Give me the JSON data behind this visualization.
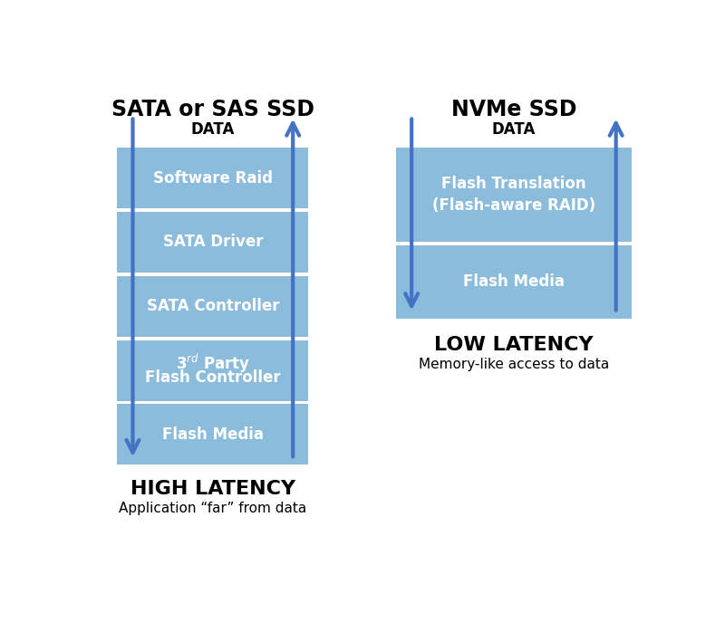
{
  "bg_color": "#ffffff",
  "box_fill": "#8bbcdb",
  "arrow_color": "#4472c4",
  "text_white": "#ffffff",
  "text_black": "#000000",
  "left_title": "SATA or SAS SSD",
  "left_data_label": "DATA",
  "left_layers_top_to_bottom": [
    "Software Raid",
    "SATA Driver",
    "SATA Controller",
    "3$^{rd}$ Party\nFlash Controller",
    "Flash Media"
  ],
  "left_latency_bold": "HIGH LATENCY",
  "left_latency_sub": "Application “far” from data",
  "right_title": "NVMe SSD",
  "right_data_label": "DATA",
  "right_layers_top_to_bottom": [
    "Flash Translation\n(Flash-aware RAID)",
    "Flash Media"
  ],
  "right_latency_bold": "LOW LATENCY",
  "right_latency_sub": "Memory-like access to data",
  "figsize": [
    8.0,
    6.98
  ],
  "dpi": 100
}
